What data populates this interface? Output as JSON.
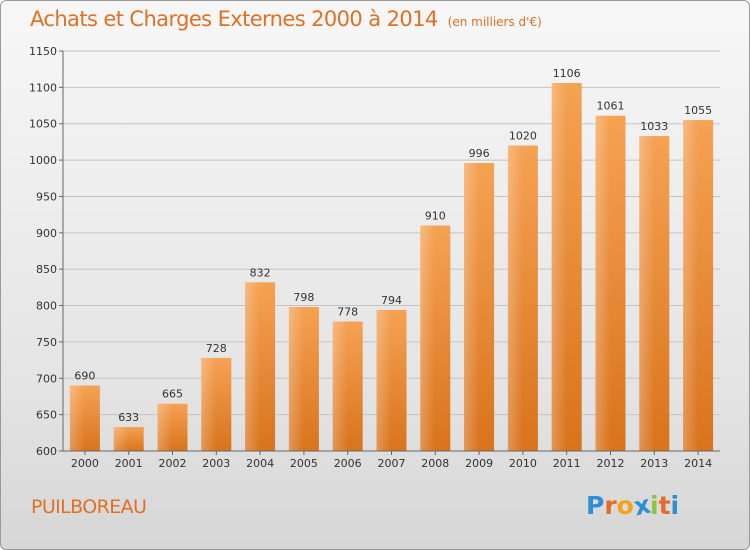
{
  "chart_data": {
    "type": "bar",
    "title": "Achats et Charges Externes 2000 à 2014",
    "subtitle": "(en milliers d'€)",
    "categories": [
      "2000",
      "2001",
      "2002",
      "2003",
      "2004",
      "2005",
      "2006",
      "2007",
      "2008",
      "2009",
      "2010",
      "2011",
      "2012",
      "2013",
      "2014"
    ],
    "values": [
      690,
      633,
      665,
      728,
      832,
      798,
      778,
      794,
      910,
      996,
      1020,
      1106,
      1061,
      1033,
      1055
    ],
    "ylim": [
      600,
      1150
    ],
    "yticks": [
      600,
      650,
      700,
      750,
      800,
      850,
      900,
      950,
      1000,
      1050,
      1100,
      1150
    ],
    "grid": true,
    "bar_color": "#f0983a"
  },
  "commune": "PUILBOREAU",
  "logo": {
    "text": "Proxiti",
    "letters": [
      {
        "ch": "P",
        "color": "#2d8fd6"
      },
      {
        "ch": "r",
        "color": "#e46b2a"
      },
      {
        "ch": "o",
        "color": "#f2a31b"
      },
      {
        "ch": "x",
        "color": "#2d8fd6"
      },
      {
        "ch": "i",
        "color": "#8cc63f"
      },
      {
        "ch": "t",
        "color": "#e46b2a"
      },
      {
        "ch": "i",
        "color": "#2d8fd6"
      }
    ]
  }
}
